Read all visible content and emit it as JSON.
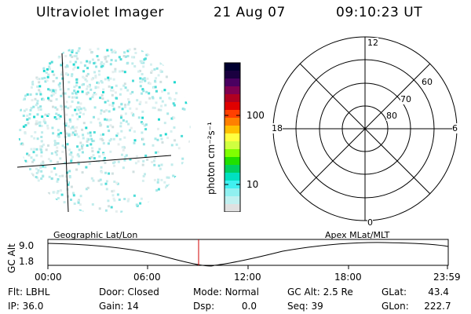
{
  "header": {
    "title": "Ultraviolet Imager",
    "date": "21 Aug 07",
    "time": "09:10:23 UT"
  },
  "colorbar": {
    "unit": "photon cm⁻²s⁻¹",
    "ticks": [
      "100",
      "10"
    ],
    "colors": [
      "#000030",
      "#1a0040",
      "#4a0060",
      "#800050",
      "#b00020",
      "#e00000",
      "#ff4000",
      "#ff8000",
      "#ffc000",
      "#ffff40",
      "#d0ff40",
      "#80ff00",
      "#20e000",
      "#00d060",
      "#00e0c0",
      "#40f0f0",
      "#90f0f0",
      "#c0f0f0",
      "#e0e0e0"
    ]
  },
  "polar": {
    "mlt_labels": {
      "top": "12",
      "left": "18",
      "right": "6",
      "bottom": "0"
    },
    "lat_labels": [
      "60",
      "70",
      "80"
    ]
  },
  "timeline": {
    "left_title": "Geographic Lat/Lon",
    "right_title": "Apex MLat/MLT",
    "axis_title": "GC Alt",
    "y_ticks": [
      "9.0",
      "1.8"
    ],
    "x_ticks": [
      "00:00",
      "06:00",
      "12:00",
      "18:00",
      "23:59"
    ],
    "marker_color": "#d00000"
  },
  "info": {
    "row1": [
      {
        "label": "Flt:",
        "value": "LBHL"
      },
      {
        "label": "Door:",
        "value": "Closed"
      },
      {
        "label": "Mode:",
        "value": "Normal"
      },
      {
        "label": "GC Alt:",
        "value": "2.5 Re"
      },
      {
        "label": "GLat:",
        "value": "43.4"
      }
    ],
    "row2": [
      {
        "label": "IP:",
        "value": "36.0"
      },
      {
        "label": "Gain:",
        "value": "14"
      },
      {
        "label": "Dsp:",
        "value": "0.0"
      },
      {
        "label": "Seq:",
        "value": "39"
      },
      {
        "label": "GLon:",
        "value": "222.7"
      }
    ]
  }
}
